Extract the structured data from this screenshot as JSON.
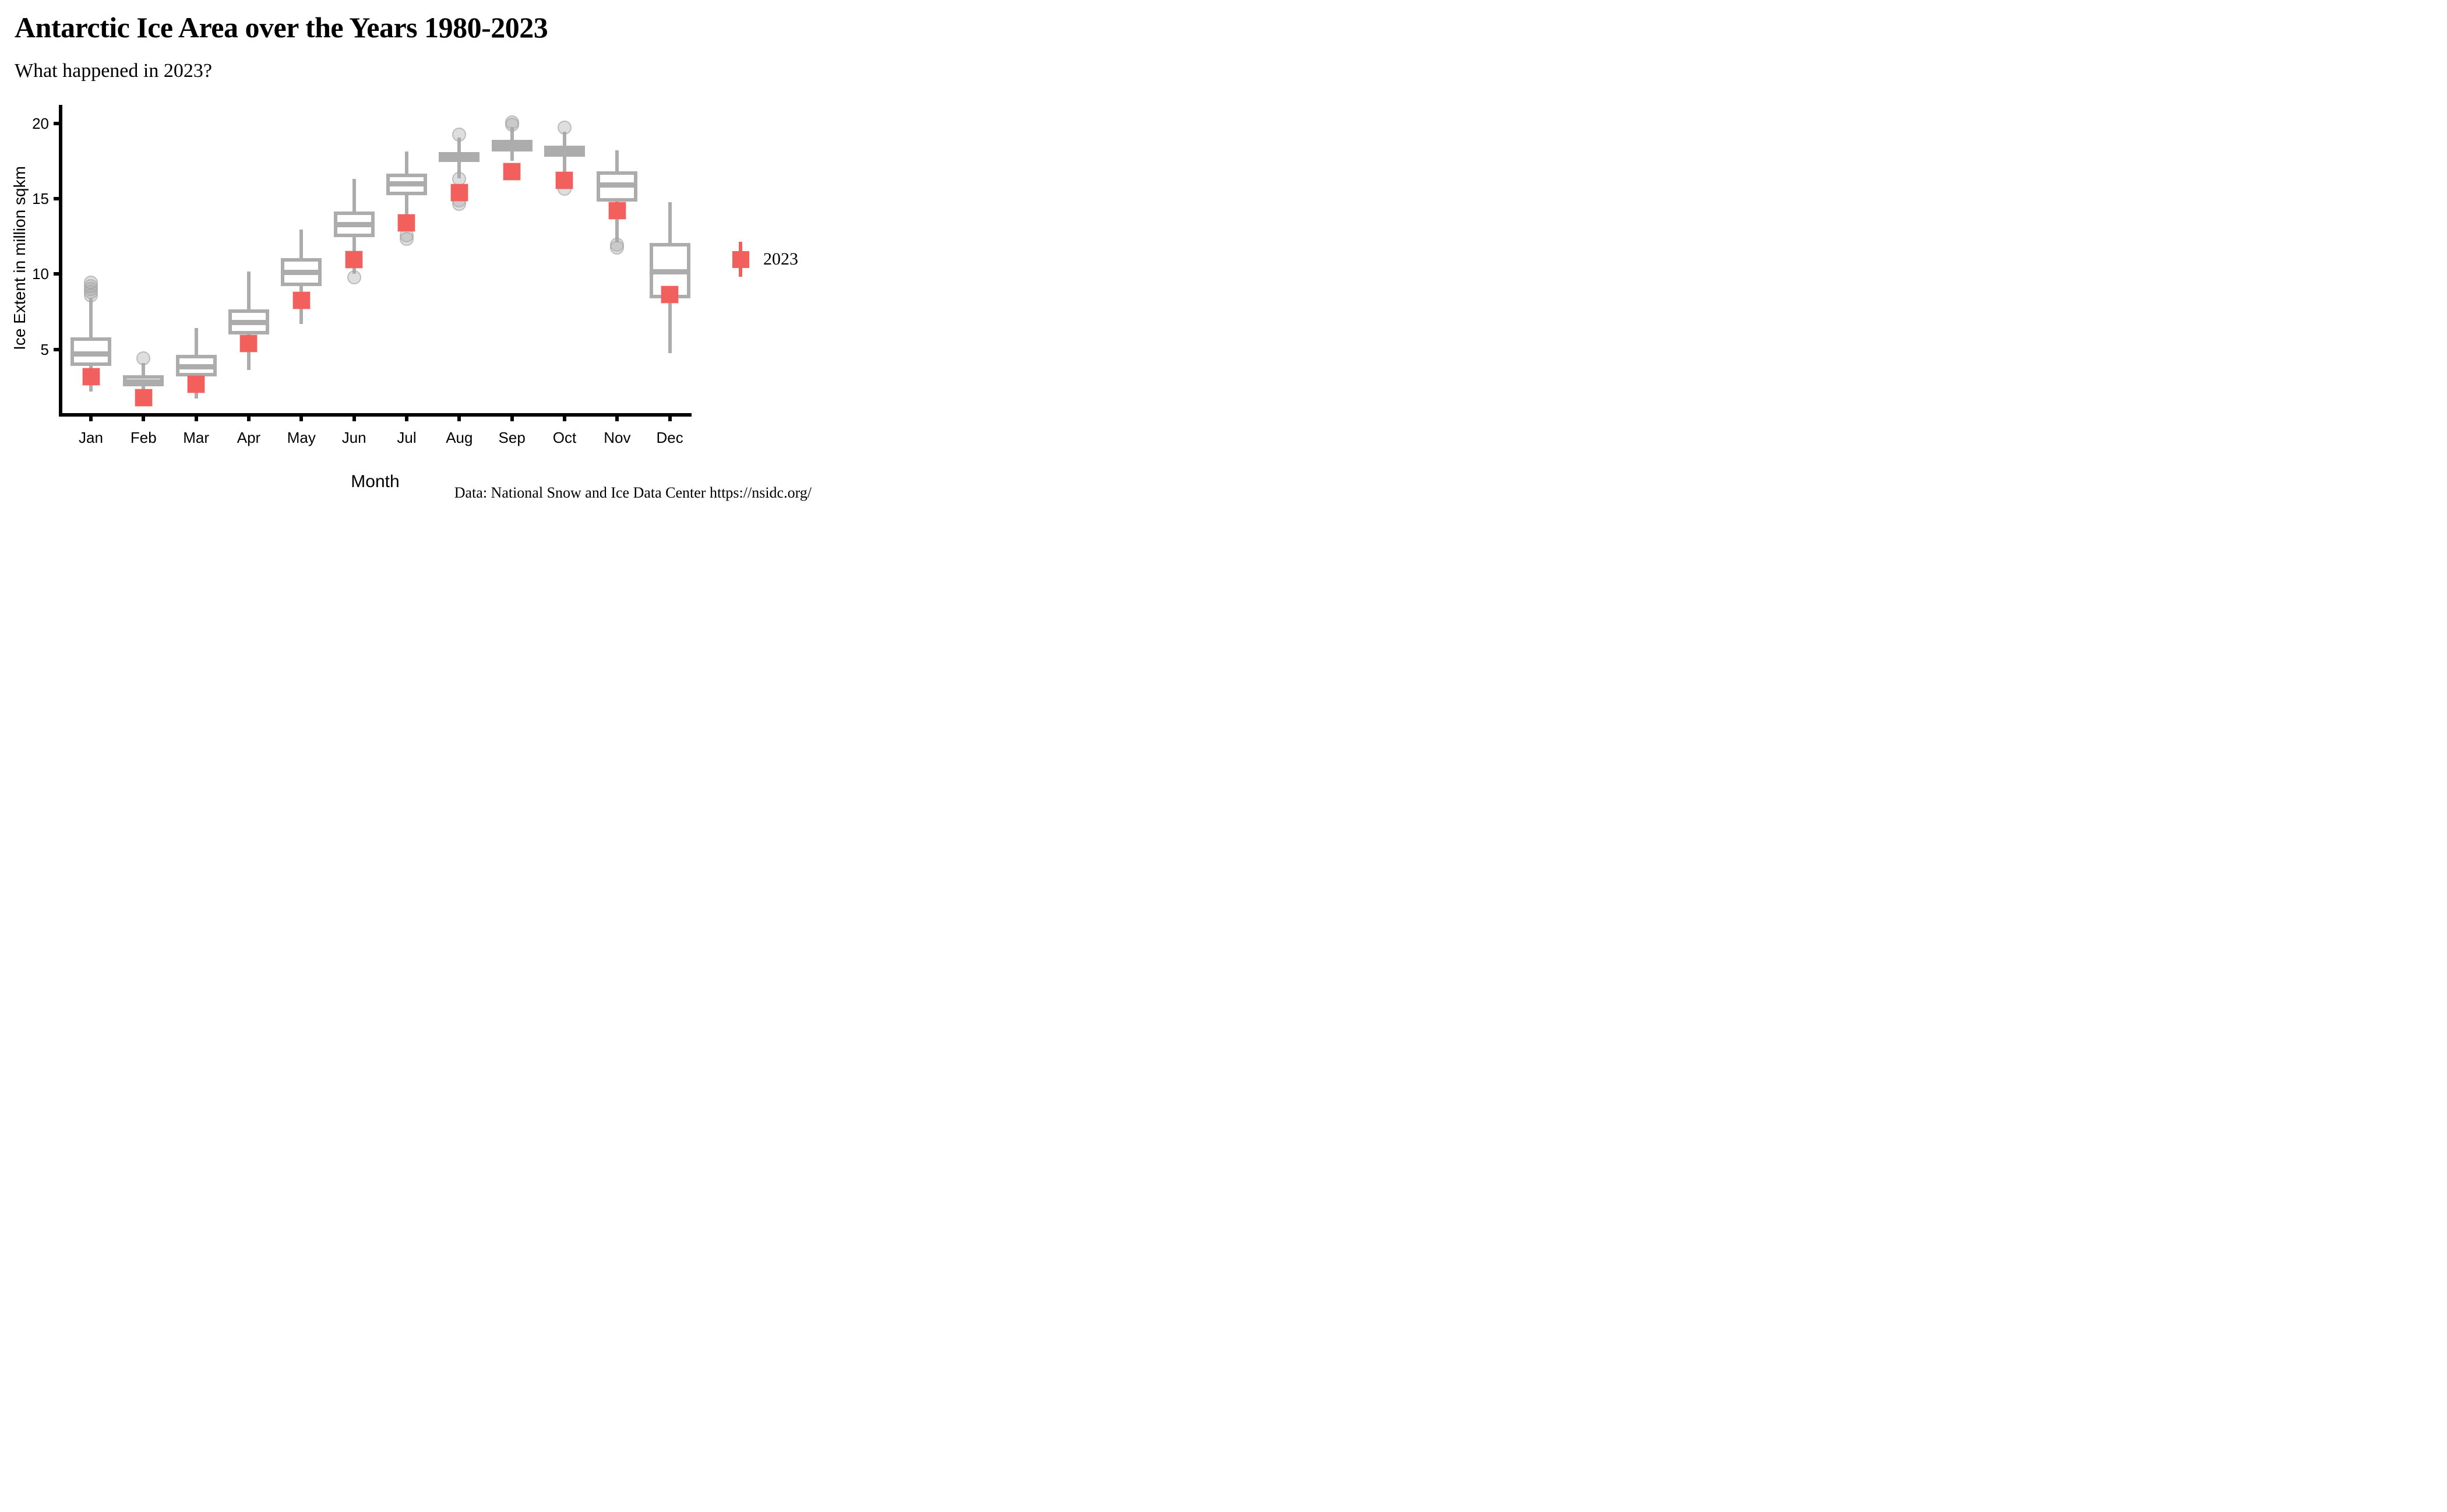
{
  "title": "Antarctic Ice Area over the Years 1980-2023",
  "subtitle": "What happened in 2023?",
  "caption": "Data: National Snow and Ice Data Center https://nsidc.org/",
  "legend": {
    "label": "2023"
  },
  "colors": {
    "point_2023": "#F2605D",
    "box_gray": "#ACACAC",
    "outlier_gray": "rgba(172,172,172,0.40)",
    "axis_black": "#000000",
    "background": "#ffffff"
  },
  "chart_data": {
    "type": "boxplot",
    "title": "Antarctic Ice Area over the Years 1980-2023",
    "subtitle": "What happened in 2023?",
    "xlabel": "Month",
    "ylabel": "Ice Extent in million sqkm",
    "ylim": [
      0.6,
      20.9
    ],
    "y_ticks": [
      5,
      10,
      15,
      20
    ],
    "grid": false,
    "legend_position": "right",
    "categories": [
      "Jan",
      "Feb",
      "Mar",
      "Apr",
      "May",
      "Jun",
      "Jul",
      "Aug",
      "Sep",
      "Oct",
      "Nov",
      "Dec"
    ],
    "boxes_1980_2022": [
      {
        "month": "Jan",
        "whisker_low": 2.2,
        "q1": 3.9,
        "median": 4.7,
        "q3": 5.8,
        "whisker_high": 8.4,
        "outliers": [
          8.6,
          8.8,
          9.0,
          9.2,
          9.45
        ]
      },
      {
        "month": "Feb",
        "whisker_low": 1.9,
        "q1": 2.55,
        "median": 2.85,
        "q3": 3.3,
        "whisker_high": 4.1,
        "outliers": [
          4.4
        ]
      },
      {
        "month": "Mar",
        "whisker_low": 1.75,
        "q1": 3.2,
        "median": 3.85,
        "q3": 4.65,
        "whisker_high": 6.4,
        "outliers": []
      },
      {
        "month": "Apr",
        "whisker_low": 3.65,
        "q1": 6.0,
        "median": 6.8,
        "q3": 7.65,
        "whisker_high": 10.15,
        "outliers": []
      },
      {
        "month": "May",
        "whisker_low": 6.7,
        "q1": 9.2,
        "median": 10.1,
        "q3": 11.05,
        "whisker_high": 12.95,
        "outliers": []
      },
      {
        "month": "Jun",
        "whisker_low": 10.0,
        "q1": 12.45,
        "median": 13.3,
        "q3": 14.15,
        "whisker_high": 16.3,
        "outliers": [
          9.8
        ]
      },
      {
        "month": "Jul",
        "whisker_low": 13.9,
        "q1": 15.25,
        "median": 16.0,
        "q3": 16.65,
        "whisker_high": 18.15,
        "outliers": [
          12.55,
          12.35
        ]
      },
      {
        "month": "Aug",
        "whisker_low": 16.35,
        "q1": 17.45,
        "median": 17.85,
        "q3": 18.1,
        "whisker_high": 19.05,
        "outliers": [
          19.25,
          16.3,
          14.9,
          14.65
        ]
      },
      {
        "month": "Sep",
        "whisker_low": 17.5,
        "q1": 18.15,
        "median": 18.5,
        "q3": 18.9,
        "whisker_high": 19.75,
        "outliers": [
          20.05,
          19.9
        ]
      },
      {
        "month": "Oct",
        "whisker_low": 16.75,
        "q1": 17.8,
        "median": 18.15,
        "q3": 18.5,
        "whisker_high": 19.45,
        "outliers": [
          19.7,
          15.65
        ]
      },
      {
        "month": "Nov",
        "whisker_low": 12.1,
        "q1": 14.8,
        "median": 15.9,
        "q3": 16.8,
        "whisker_high": 18.2,
        "outliers": [
          11.95,
          11.75
        ]
      },
      {
        "month": "Dec",
        "whisker_low": 4.75,
        "q1": 8.4,
        "median": 10.15,
        "q3": 12.05,
        "whisker_high": 14.75,
        "outliers": []
      }
    ],
    "series": [
      {
        "name": "2023",
        "type": "point",
        "values": [
          3.2,
          1.8,
          2.7,
          5.4,
          8.25,
          10.95,
          13.4,
          15.4,
          16.8,
          16.2,
          14.2,
          8.65
        ]
      }
    ]
  }
}
